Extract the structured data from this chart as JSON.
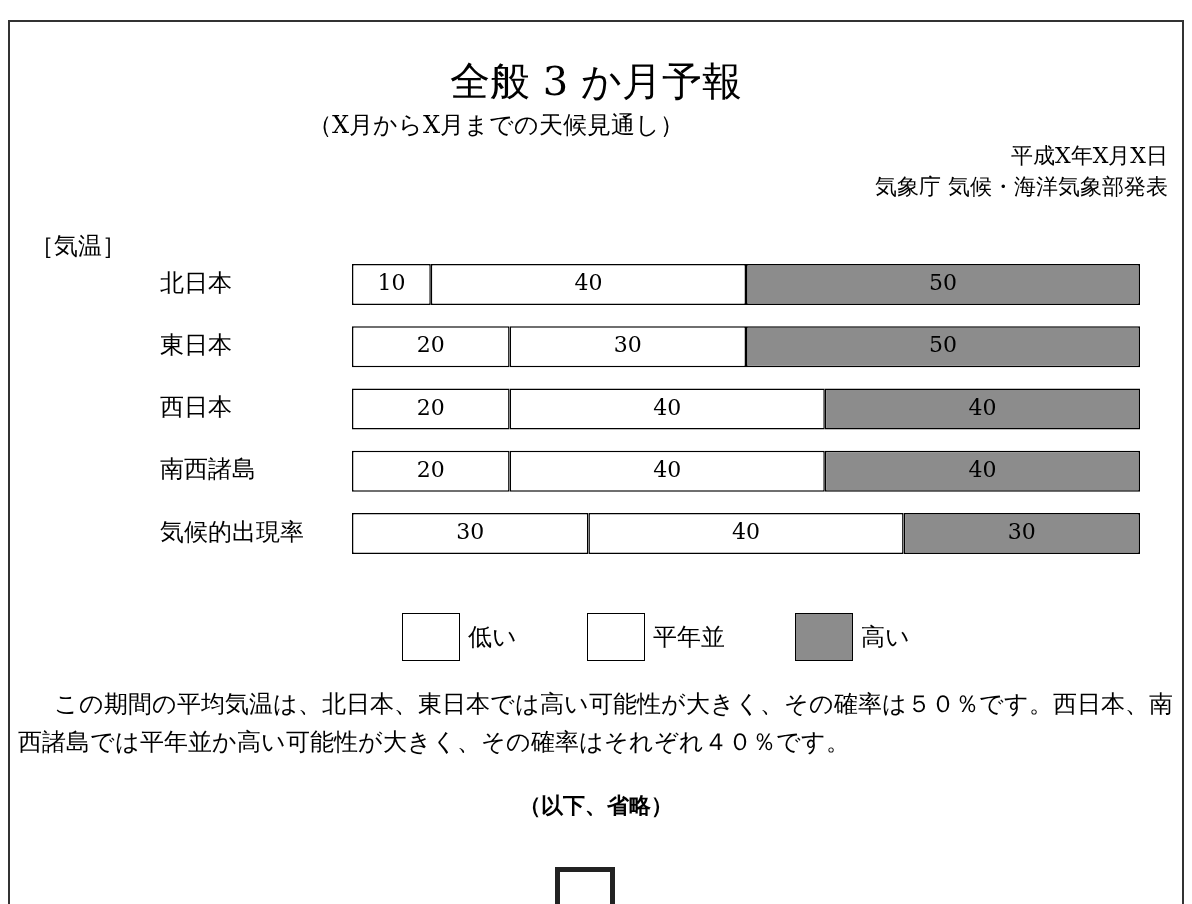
{
  "chart_data": {
    "type": "bar",
    "orientation": "horizontal",
    "stacked": true,
    "title": "全般 3 か月予報",
    "subtitle": "（X月からX月までの天候見通し）",
    "ylabel": "［気温］",
    "categories": [
      "北日本",
      "東日本",
      "西日本",
      "南西諸島",
      "気候的出現率"
    ],
    "series": [
      {
        "name": "低い",
        "color": "#ffffff",
        "values": [
          10,
          20,
          20,
          20,
          30
        ]
      },
      {
        "name": "平年並",
        "color": "#ffffff",
        "values": [
          40,
          30,
          40,
          40,
          40
        ]
      },
      {
        "name": "高い",
        "color": "#8c8c8c",
        "values": [
          50,
          50,
          40,
          40,
          30
        ]
      }
    ],
    "xlim": [
      0,
      100
    ],
    "tick_labels": "y",
    "data_labels": true,
    "legend": "bottom",
    "annotations": [
      "平成X年X月X日",
      "気象庁 気候・海洋気象部発表",
      "この期間の平均気温は、北日本、東日本では高い可能性が大きく、その確率は５０％です。西日本、南西諸島では平年並か高い可能性が大きく、その確率はそれぞれ４０％です。",
      "（以下、省略）"
    ]
  }
}
